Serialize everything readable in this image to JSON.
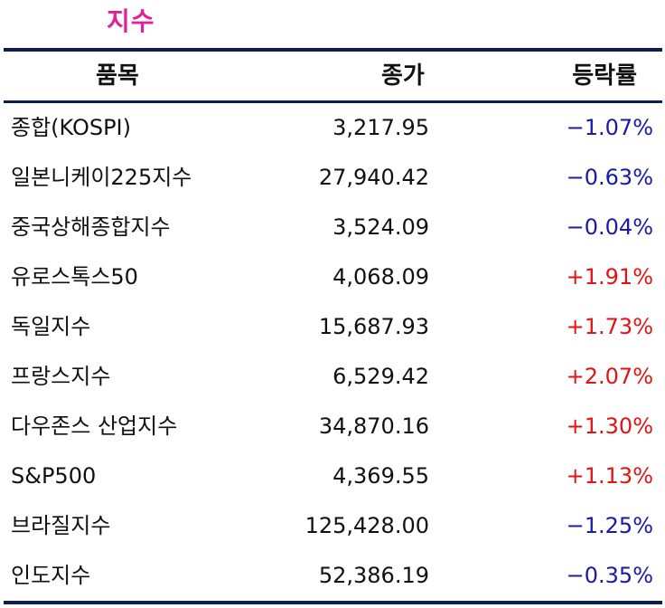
{
  "title": "지수",
  "header": {
    "name": "품목",
    "close": "종가",
    "change": "등락률"
  },
  "colors": {
    "title": "#e0219a",
    "rule": "#0d1f4f",
    "negative": "#1a1aa8",
    "positive": "#e01414"
  },
  "rows": [
    {
      "name": "종합(KOSPI)",
      "close": "3,217.95",
      "change": "−1.07%",
      "dir": "neg"
    },
    {
      "name": "일본니케이225지수",
      "close": "27,940.42",
      "change": "−0.63%",
      "dir": "neg"
    },
    {
      "name": "중국상해종합지수",
      "close": "3,524.09",
      "change": "−0.04%",
      "dir": "neg"
    },
    {
      "name": "유로스톡스50",
      "close": "4,068.09",
      "change": "+1.91%",
      "dir": "pos"
    },
    {
      "name": "독일지수",
      "close": "15,687.93",
      "change": "+1.73%",
      "dir": "pos"
    },
    {
      "name": "프랑스지수",
      "close": "6,529.42",
      "change": "+2.07%",
      "dir": "pos"
    },
    {
      "name": "다우존스 산업지수",
      "close": "34,870.16",
      "change": "+1.30%",
      "dir": "pos"
    },
    {
      "name": "S&P500",
      "close": "4,369.55",
      "change": "+1.13%",
      "dir": "pos"
    },
    {
      "name": "브라질지수",
      "close": "125,428.00",
      "change": "−1.25%",
      "dir": "neg"
    },
    {
      "name": "인도지수",
      "close": "52,386.19",
      "change": "−0.35%",
      "dir": "neg"
    }
  ]
}
